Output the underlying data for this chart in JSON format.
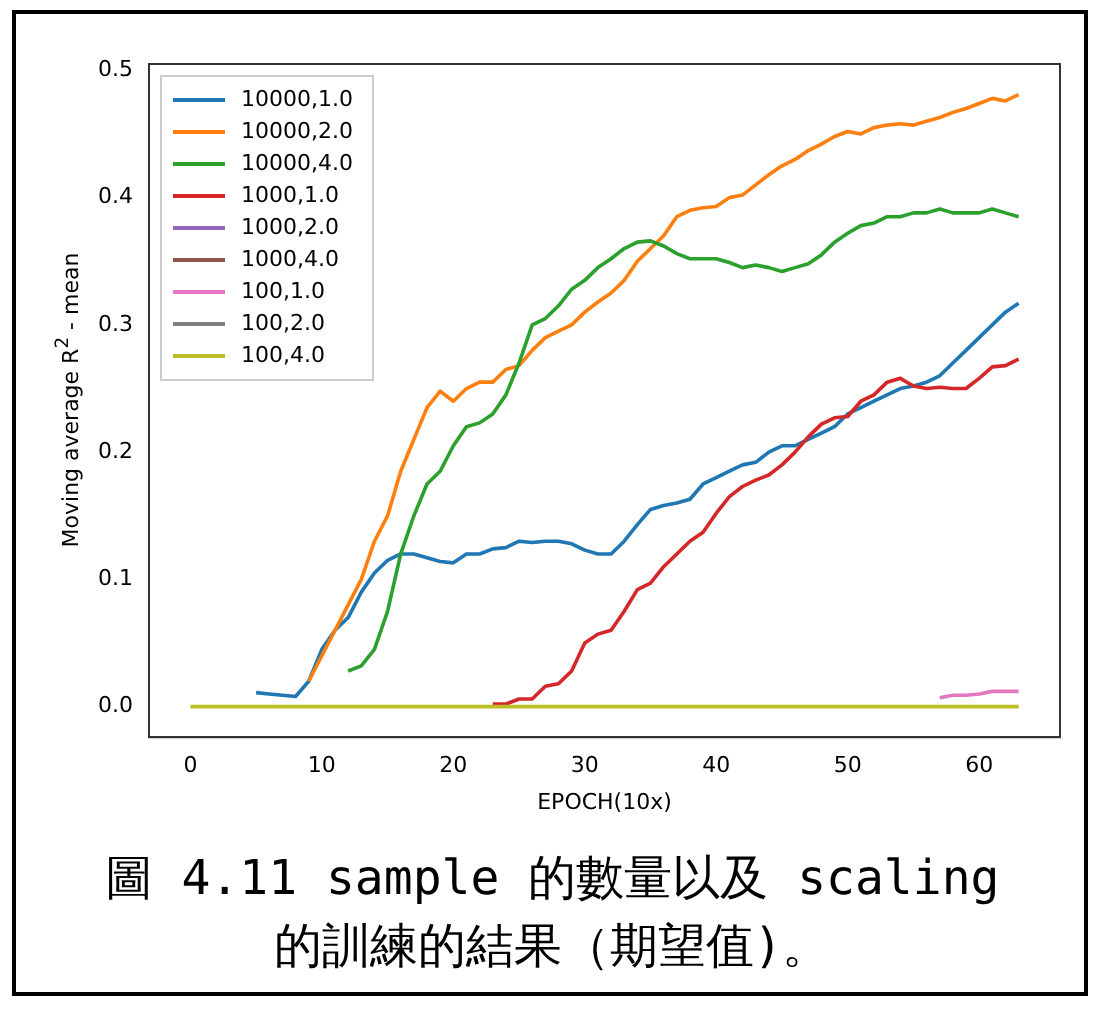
{
  "chart_data": {
    "type": "line",
    "xlabel": "EPOCH(10x)",
    "ylabel": "Moving average R$^{2}$ - mean",
    "annotations": [
      "圖 4.11 sample 的數量以及 scaling 的訓練的結果（期望值)。"
    ],
    "legend": "top left",
    "grid": false,
    "x": [
      0,
      1,
      2,
      3,
      4,
      5,
      6,
      7,
      8,
      9,
      10,
      11,
      12,
      13,
      14,
      15,
      16,
      17,
      18,
      19,
      20,
      21,
      22,
      23,
      24,
      25,
      26,
      27,
      28,
      29,
      30,
      31,
      32,
      33,
      34,
      35,
      36,
      37,
      38,
      39,
      40,
      41,
      42,
      43,
      44,
      45,
      46,
      47,
      48,
      49,
      50,
      51,
      52,
      53,
      54,
      55,
      56,
      57,
      58,
      59,
      60,
      61,
      62,
      63
    ],
    "xlim": [
      -3.15,
      66.15
    ],
    "xticks": [
      0,
      10,
      20,
      30,
      40,
      50,
      60
    ],
    "ylim": [
      -0.024,
      0.505
    ],
    "yticks": [
      {
        "value": 0,
        "label": "0.0"
      },
      {
        "value": 0.1,
        "label": "0.1"
      },
      {
        "value": 0.2,
        "label": "0.2"
      },
      {
        "value": 0.3,
        "label": "0.3"
      },
      {
        "value": 0.4,
        "label": "0.4"
      },
      {
        "value": 0.5,
        "label": "0.5"
      }
    ],
    "series": [
      {
        "name": "10000,1.0",
        "color": "#1f77b4",
        "values": [
          null,
          null,
          null,
          null,
          null,
          0.011,
          0.01,
          0.009,
          0.008,
          0.02,
          0.045,
          0.06,
          0.07,
          0.09,
          0.105,
          0.115,
          0.12,
          0.12,
          0.117,
          0.114,
          0.113,
          0.12,
          0.12,
          0.124,
          0.125,
          0.13,
          0.129,
          0.13,
          0.13,
          0.128,
          0.123,
          0.12,
          0.12,
          0.13,
          0.143,
          0.155,
          0.158,
          0.16,
          0.163,
          0.175,
          0.18,
          0.185,
          0.19,
          0.192,
          0.2,
          0.205,
          0.205,
          0.21,
          0.215,
          0.22,
          0.23,
          0.235,
          0.24,
          0.245,
          0.25,
          0.252,
          0.255,
          0.26,
          0.27,
          0.28,
          0.29,
          0.3,
          0.31,
          0.317
        ]
      },
      {
        "name": "10000,2.0",
        "color": "#ff7f0e",
        "values": [
          null,
          null,
          null,
          null,
          null,
          null,
          null,
          null,
          null,
          0.02,
          0.04,
          0.06,
          0.08,
          0.1,
          0.13,
          0.15,
          0.185,
          0.21,
          0.235,
          0.248,
          0.24,
          0.25,
          0.255,
          0.255,
          0.265,
          0.268,
          0.28,
          0.29,
          0.295,
          0.3,
          0.31,
          0.318,
          0.325,
          0.335,
          0.35,
          0.36,
          0.37,
          0.385,
          0.39,
          0.392,
          0.393,
          0.4,
          0.402,
          0.41,
          0.418,
          0.425,
          0.43,
          0.437,
          0.442,
          0.448,
          0.452,
          0.45,
          0.455,
          0.457,
          0.458,
          0.457,
          0.46,
          0.463,
          0.467,
          0.47,
          0.474,
          0.478,
          0.476,
          0.481
        ]
      },
      {
        "name": "10000,4.0",
        "color": "#2ca02c",
        "values": [
          null,
          null,
          null,
          null,
          null,
          null,
          null,
          null,
          null,
          null,
          null,
          null,
          0.028,
          0.032,
          0.045,
          0.075,
          0.12,
          0.15,
          0.175,
          0.185,
          0.205,
          0.22,
          0.223,
          0.23,
          0.245,
          0.27,
          0.3,
          0.305,
          0.315,
          0.328,
          0.335,
          0.345,
          0.352,
          0.36,
          0.365,
          0.366,
          0.362,
          0.356,
          0.352,
          0.352,
          0.352,
          0.349,
          0.345,
          0.347,
          0.345,
          0.342,
          0.345,
          0.348,
          0.355,
          0.365,
          0.372,
          0.378,
          0.38,
          0.385,
          0.385,
          0.388,
          0.388,
          0.391,
          0.388,
          0.388,
          0.388,
          0.391,
          0.388,
          0.385
        ]
      },
      {
        "name": "1000,1.0",
        "color": "#d62728",
        "values": [
          null,
          null,
          null,
          null,
          null,
          null,
          null,
          null,
          null,
          null,
          null,
          null,
          null,
          null,
          null,
          null,
          null,
          null,
          null,
          null,
          null,
          null,
          null,
          0.002,
          0.002,
          0.006,
          0.006,
          0.016,
          0.018,
          0.028,
          0.05,
          0.057,
          0.06,
          0.075,
          0.092,
          0.097,
          0.11,
          0.12,
          0.13,
          0.137,
          0.152,
          0.165,
          0.173,
          0.178,
          0.182,
          0.19,
          0.2,
          0.212,
          0.222,
          0.227,
          0.228,
          0.24,
          0.245,
          0.255,
          0.258,
          0.252,
          0.25,
          0.251,
          0.25,
          0.25,
          0.258,
          0.267,
          0.268,
          0.273
        ]
      },
      {
        "name": "1000,2.0",
        "color": "#9467bd",
        "values": [
          null,
          null,
          null,
          null,
          null,
          null,
          null,
          null,
          null,
          null,
          null,
          null,
          null,
          null,
          null,
          null,
          null,
          null,
          null,
          null,
          null,
          null,
          null,
          null,
          null,
          null,
          null,
          null,
          null,
          null,
          null,
          null,
          null,
          null,
          null,
          null,
          null,
          null,
          null,
          null,
          null,
          null,
          null,
          null,
          null,
          null,
          null,
          null,
          null,
          null,
          null,
          null,
          null,
          null,
          null,
          null,
          null,
          null,
          null,
          null,
          null,
          null,
          null,
          null
        ]
      },
      {
        "name": "1000,4.0",
        "color": "#8c564b",
        "values": [
          null,
          null,
          null,
          null,
          null,
          null,
          null,
          null,
          null,
          null,
          null,
          null,
          null,
          null,
          null,
          null,
          null,
          null,
          null,
          null,
          null,
          null,
          null,
          null,
          null,
          null,
          null,
          null,
          null,
          null,
          null,
          null,
          null,
          null,
          null,
          null,
          null,
          null,
          null,
          null,
          null,
          null,
          null,
          null,
          null,
          null,
          null,
          null,
          null,
          null,
          null,
          null,
          null,
          null,
          null,
          null,
          null,
          null,
          null,
          null,
          null,
          null,
          null,
          null
        ]
      },
      {
        "name": "100,1.0",
        "color": "#e377c2",
        "values": [
          null,
          null,
          null,
          null,
          null,
          null,
          null,
          null,
          null,
          null,
          null,
          null,
          null,
          null,
          null,
          null,
          null,
          null,
          null,
          null,
          null,
          null,
          null,
          null,
          null,
          null,
          null,
          null,
          null,
          null,
          null,
          null,
          null,
          null,
          null,
          null,
          null,
          null,
          null,
          null,
          null,
          null,
          null,
          null,
          null,
          null,
          null,
          null,
          null,
          null,
          null,
          null,
          null,
          null,
          null,
          null,
          null,
          0.007,
          0.009,
          0.009,
          0.01,
          0.012,
          0.012,
          0.012
        ]
      },
      {
        "name": "100,2.0",
        "color": "#7f7f7f",
        "values": [
          null,
          null,
          null,
          null,
          null,
          null,
          null,
          null,
          null,
          null,
          null,
          null,
          null,
          null,
          null,
          null,
          null,
          null,
          null,
          null,
          null,
          null,
          null,
          null,
          null,
          null,
          null,
          null,
          null,
          null,
          null,
          null,
          null,
          null,
          null,
          null,
          null,
          null,
          null,
          null,
          null,
          null,
          null,
          null,
          null,
          null,
          null,
          null,
          null,
          null,
          null,
          null,
          null,
          null,
          null,
          null,
          null,
          null,
          null,
          null,
          null,
          null,
          null,
          null
        ]
      },
      {
        "name": "100,4.0",
        "color": "#bcbd22",
        "values": [
          0,
          0,
          0,
          0,
          0,
          0,
          0,
          0,
          0,
          0,
          0,
          0,
          0,
          0,
          0,
          0,
          0,
          0,
          0,
          0,
          0,
          0,
          0,
          0,
          0,
          0,
          0,
          0,
          0,
          0,
          0,
          0,
          0,
          0,
          0,
          0,
          0,
          0,
          0,
          0,
          0,
          0,
          0,
          0,
          0,
          0,
          0,
          0,
          0,
          0,
          0,
          0,
          0,
          0,
          0,
          0,
          0,
          0,
          0,
          0,
          0,
          0,
          0,
          0
        ]
      }
    ]
  }
}
